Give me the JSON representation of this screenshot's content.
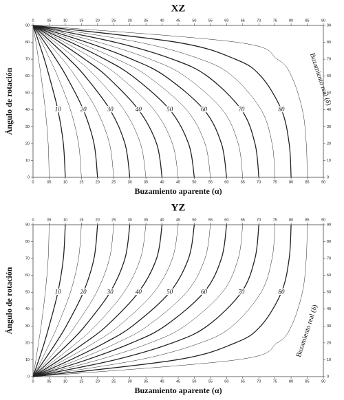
{
  "chart_data": [
    {
      "type": "line",
      "title": "XZ",
      "xlabel": "Buzamiento aparente (α)",
      "ylabel": "Ángulo de rotación",
      "annotation": "Buzamiento real (δ)",
      "xlim": [
        0,
        90
      ],
      "ylim": [
        0,
        90
      ],
      "xticks": [
        0,
        {
          "value": 5,
          "label": "05"
        },
        10,
        15,
        20,
        25,
        30,
        35,
        40,
        45,
        50,
        55,
        60,
        65,
        70,
        75,
        80,
        85,
        90
      ],
      "yticks": [
        0,
        10,
        20,
        30,
        40,
        50,
        60,
        70,
        80,
        90
      ],
      "y": [
        0,
        20,
        40,
        60,
        70,
        80,
        90
      ],
      "series": [
        {
          "values": [
            5,
            4.7,
            3.8,
            2.5,
            1.7,
            0.9,
            0
          ]
        },
        {
          "name": "10",
          "values": [
            10,
            9.4,
            7.7,
            5.0,
            3.5,
            1.8,
            0
          ]
        },
        {
          "values": [
            15,
            14.1,
            11.6,
            7.6,
            5.2,
            2.7,
            0
          ]
        },
        {
          "name": "20",
          "values": [
            20,
            18.9,
            15.6,
            10.3,
            7.1,
            3.6,
            0
          ]
        },
        {
          "values": [
            25,
            23.7,
            19.7,
            13.1,
            9.1,
            4.6,
            0
          ]
        },
        {
          "name": "30",
          "values": [
            30,
            28.5,
            23.9,
            16.1,
            11.2,
            5.7,
            0
          ]
        },
        {
          "values": [
            35,
            33.3,
            28.2,
            19.3,
            13.5,
            6.9,
            0
          ]
        },
        {
          "name": "40",
          "values": [
            40,
            38.3,
            32.7,
            22.8,
            16.0,
            8.3,
            0
          ]
        },
        {
          "values": [
            45,
            43.2,
            37.5,
            26.6,
            18.9,
            9.8,
            0
          ]
        },
        {
          "name": "50",
          "values": [
            50,
            48.2,
            42.4,
            30.8,
            22.2,
            11.7,
            0
          ]
        },
        {
          "values": [
            55,
            53.3,
            47.6,
            35.5,
            26.0,
            13.9,
            0
          ]
        },
        {
          "name": "60",
          "values": [
            60,
            58.4,
            53.0,
            40.9,
            30.6,
            16.7,
            0
          ]
        },
        {
          "values": [
            65,
            63.6,
            58.7,
            47.0,
            36.3,
            20.4,
            0
          ]
        },
        {
          "name": "70",
          "values": [
            70,
            68.8,
            64.6,
            54.0,
            43.2,
            25.5,
            0
          ]
        },
        {
          "values": [
            75,
            74.1,
            70.7,
            61.8,
            51.9,
            32.9,
            0
          ]
        },
        {
          "name": "80",
          "values": [
            80,
            79.4,
            77.0,
            70.6,
            62.7,
            44.6,
            0
          ]
        },
        {
          "values": [
            85,
            84.7,
            83.5,
            80.1,
            75.7,
            63.3,
            0
          ]
        }
      ]
    },
    {
      "type": "line",
      "title": "YZ",
      "xlabel": "Buzamiento aparente (α)",
      "ylabel": "Ángulo de rotación",
      "annotation": "Buzamiento real (δ)",
      "xlim": [
        0,
        90
      ],
      "ylim": [
        0,
        90
      ],
      "xticks": [
        0,
        {
          "value": 5,
          "label": "05"
        },
        10,
        15,
        20,
        25,
        30,
        35,
        40,
        45,
        50,
        55,
        60,
        65,
        70,
        75,
        80,
        85,
        90
      ],
      "yticks": [
        0,
        10,
        20,
        30,
        40,
        50,
        60,
        70,
        80,
        90
      ],
      "y": [
        90,
        70,
        50,
        30,
        20,
        10,
        0
      ],
      "series": [
        {
          "values": [
            5,
            4.7,
            3.8,
            2.5,
            1.7,
            0.9,
            0
          ]
        },
        {
          "name": "10",
          "values": [
            10,
            9.4,
            7.7,
            5.0,
            3.5,
            1.8,
            0
          ]
        },
        {
          "values": [
            15,
            14.1,
            11.6,
            7.6,
            5.2,
            2.7,
            0
          ]
        },
        {
          "name": "20",
          "values": [
            20,
            18.9,
            15.6,
            10.3,
            7.1,
            3.6,
            0
          ]
        },
        {
          "values": [
            25,
            23.7,
            19.7,
            13.1,
            9.1,
            4.6,
            0
          ]
        },
        {
          "name": "30",
          "values": [
            30,
            28.5,
            23.9,
            16.1,
            11.2,
            5.7,
            0
          ]
        },
        {
          "values": [
            35,
            33.3,
            28.2,
            19.3,
            13.5,
            6.9,
            0
          ]
        },
        {
          "name": "40",
          "values": [
            40,
            38.3,
            32.7,
            22.8,
            16.0,
            8.3,
            0
          ]
        },
        {
          "values": [
            45,
            43.2,
            37.5,
            26.6,
            18.9,
            9.8,
            0
          ]
        },
        {
          "name": "50",
          "values": [
            50,
            48.2,
            42.4,
            30.8,
            22.2,
            11.7,
            0
          ]
        },
        {
          "values": [
            55,
            53.3,
            47.6,
            35.5,
            26.0,
            13.9,
            0
          ]
        },
        {
          "name": "60",
          "values": [
            60,
            58.4,
            53.0,
            40.9,
            30.6,
            16.7,
            0
          ]
        },
        {
          "values": [
            65,
            63.6,
            58.7,
            47.0,
            36.3,
            20.4,
            0
          ]
        },
        {
          "name": "70",
          "values": [
            70,
            68.8,
            64.6,
            54.0,
            43.2,
            25.5,
            0
          ]
        },
        {
          "values": [
            75,
            74.1,
            70.7,
            61.8,
            51.9,
            32.9,
            0
          ]
        },
        {
          "name": "80",
          "values": [
            80,
            79.4,
            77.0,
            70.6,
            62.7,
            44.6,
            0
          ]
        },
        {
          "values": [
            85,
            84.7,
            83.5,
            80.1,
            75.7,
            63.3,
            0
          ]
        }
      ]
    }
  ]
}
